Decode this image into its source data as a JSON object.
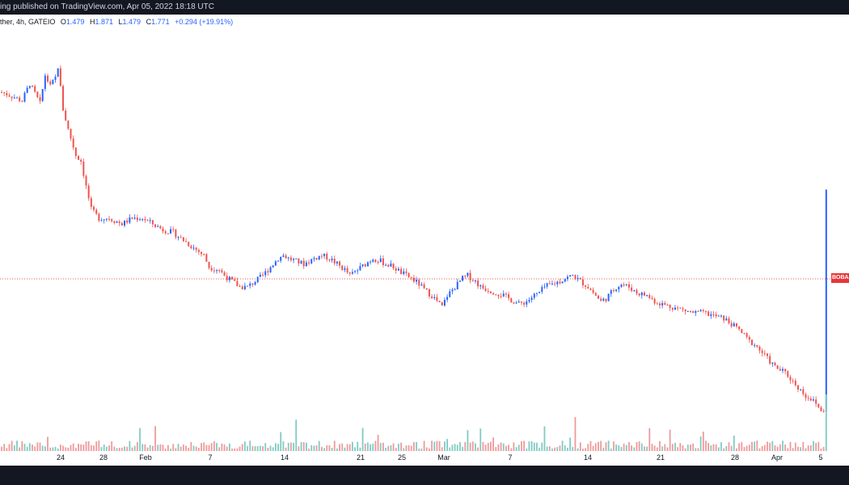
{
  "header": {
    "attribution": "ing published on TradingView.com, Apr 05, 2022 18:18 UTC"
  },
  "legend": {
    "symbol": "ther, 4h, GATEIO",
    "open_label": "O",
    "open": "1.479",
    "high_label": "H",
    "high": "1.871",
    "low_label": "L",
    "low": "1.479",
    "close_label": "C",
    "close": "1.771",
    "change": "+0.294 (+19.91%)"
  },
  "price_label": "BOBA",
  "colors": {
    "up": "#2962ff",
    "down": "#ef5350",
    "volume_up": "#80cbc4",
    "volume_down": "#ef9a9a",
    "dotted_line": "#ef5350",
    "axis_text": "#131722"
  },
  "chart_data": {
    "type": "candlestick",
    "timeframe": "4h",
    "x_ticks": [
      "24",
      "28",
      "Feb",
      "7",
      "14",
      "21",
      "25",
      "Mar",
      "7",
      "14",
      "21",
      "28",
      "Apr",
      "5"
    ],
    "last_price": 1.771,
    "close_path": [
      [
        0,
        0.82
      ],
      [
        3,
        0.81
      ],
      [
        8,
        0.79
      ],
      [
        11,
        0.85
      ],
      [
        15,
        0.78
      ],
      [
        17,
        0.88
      ],
      [
        19,
        0.84
      ],
      [
        21,
        0.87
      ],
      [
        22,
        0.91
      ],
      [
        24,
        0.76
      ],
      [
        26,
        0.69
      ],
      [
        29,
        0.6
      ],
      [
        31,
        0.58
      ],
      [
        33,
        0.49
      ],
      [
        35,
        0.41
      ],
      [
        38,
        0.38
      ],
      [
        42,
        0.38
      ],
      [
        47,
        0.36
      ],
      [
        51,
        0.38
      ],
      [
        55,
        0.38
      ],
      [
        59,
        0.36
      ],
      [
        63,
        0.34
      ],
      [
        67,
        0.33
      ],
      [
        70,
        0.31
      ],
      [
        73,
        0.29
      ],
      [
        76,
        0.27
      ],
      [
        79,
        0.25
      ],
      [
        81,
        0.21
      ],
      [
        85,
        0.2
      ],
      [
        87,
        0.18
      ],
      [
        90,
        0.16
      ],
      [
        93,
        0.14
      ],
      [
        96,
        0.14
      ],
      [
        99,
        0.16
      ],
      [
        102,
        0.18
      ],
      [
        104,
        0.2
      ],
      [
        106,
        0.22
      ],
      [
        108,
        0.24
      ],
      [
        110,
        0.25
      ],
      [
        112,
        0.24
      ],
      [
        115,
        0.23
      ],
      [
        118,
        0.22
      ],
      [
        120,
        0.23
      ],
      [
        122,
        0.24
      ],
      [
        125,
        0.25
      ],
      [
        128,
        0.24
      ],
      [
        131,
        0.22
      ],
      [
        134,
        0.2
      ],
      [
        136,
        0.18
      ],
      [
        139,
        0.2
      ],
      [
        142,
        0.22
      ],
      [
        145,
        0.24
      ],
      [
        148,
        0.23
      ],
      [
        150,
        0.22
      ],
      [
        153,
        0.21
      ],
      [
        156,
        0.19
      ],
      [
        160,
        0.17
      ],
      [
        163,
        0.15
      ],
      [
        165,
        0.13
      ],
      [
        168,
        0.11
      ],
      [
        170,
        0.09
      ],
      [
        172,
        0.07
      ],
      [
        174,
        0.11
      ],
      [
        178,
        0.15
      ],
      [
        180,
        0.17
      ],
      [
        182,
        0.18
      ],
      [
        185,
        0.16
      ],
      [
        187,
        0.14
      ],
      [
        190,
        0.13
      ],
      [
        193,
        0.12
      ],
      [
        196,
        0.11
      ],
      [
        198,
        0.1
      ],
      [
        200,
        0.09
      ],
      [
        202,
        0.08
      ],
      [
        205,
        0.09
      ],
      [
        208,
        0.11
      ],
      [
        210,
        0.12
      ],
      [
        212,
        0.14
      ],
      [
        215,
        0.15
      ],
      [
        218,
        0.16
      ],
      [
        220,
        0.17
      ],
      [
        223,
        0.18
      ],
      [
        226,
        0.16
      ],
      [
        229,
        0.14
      ],
      [
        232,
        0.11
      ],
      [
        234,
        0.09
      ],
      [
        236,
        0.1
      ],
      [
        238,
        0.12
      ],
      [
        240,
        0.14
      ],
      [
        242,
        0.15
      ],
      [
        245,
        0.14
      ],
      [
        248,
        0.12
      ],
      [
        252,
        0.11
      ],
      [
        255,
        0.09
      ],
      [
        258,
        0.08
      ],
      [
        262,
        0.07
      ],
      [
        266,
        0.06
      ],
      [
        270,
        0.05
      ],
      [
        274,
        0.05
      ],
      [
        278,
        0.04
      ],
      [
        282,
        0.03
      ],
      [
        285,
        0.01
      ],
      [
        288,
        -0.01
      ],
      [
        290,
        -0.03
      ],
      [
        292,
        -0.05
      ],
      [
        294,
        -0.06
      ],
      [
        296,
        -0.08
      ],
      [
        298,
        -0.1
      ],
      [
        300,
        -0.12
      ],
      [
        302,
        -0.14
      ],
      [
        304,
        -0.15
      ],
      [
        306,
        -0.16
      ],
      [
        308,
        -0.18
      ],
      [
        310,
        -0.2
      ],
      [
        312,
        -0.22
      ],
      [
        314,
        -0.24
      ],
      [
        316,
        -0.25
      ],
      [
        318,
        -0.27
      ],
      [
        320,
        -0.29
      ],
      [
        322,
        -0.31
      ]
    ]
  }
}
